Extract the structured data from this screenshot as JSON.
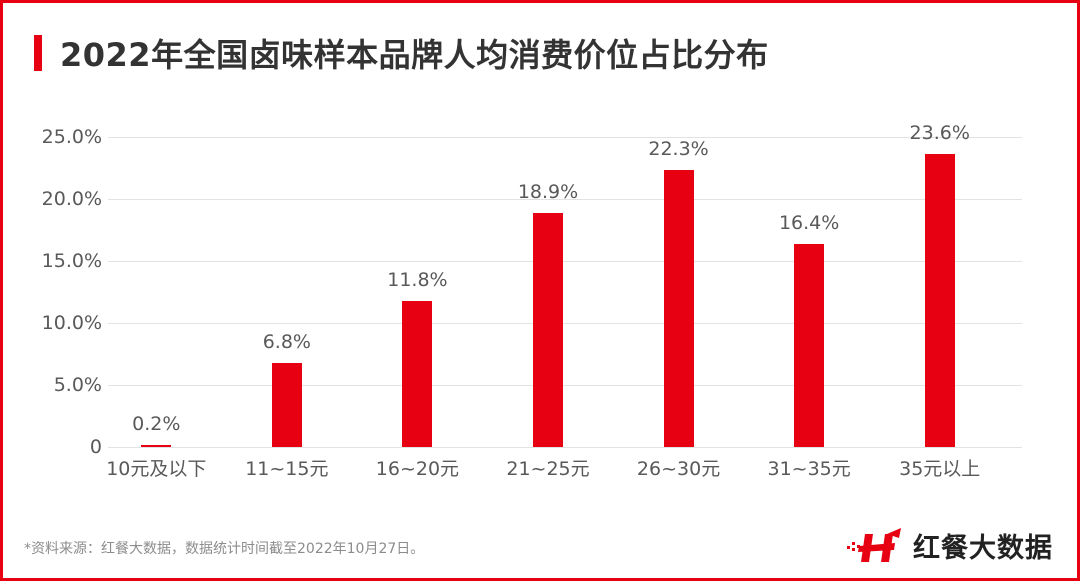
{
  "header": {
    "title": "2022年全国卤味样本品牌人均消费价位占比分布"
  },
  "footer": {
    "source_note": "*资料来源：红餐大数据，数据统计时间截至2022年10月27日。",
    "brand_logo_text": "红餐大数据"
  },
  "colors": {
    "accent": "#e60012",
    "text": "#333333",
    "axis_text": "#595959",
    "grid": "#e2e2e2"
  },
  "chart_data": {
    "type": "bar",
    "title": "2022年全国卤味样本品牌人均消费价位占比分布",
    "xlabel": "",
    "ylabel": "",
    "categories": [
      "10元及以下",
      "11~15元",
      "16~20元",
      "21~25元",
      "26~30元",
      "31~35元",
      "35元以上"
    ],
    "values": [
      0.2,
      6.8,
      11.8,
      18.9,
      22.3,
      16.4,
      23.6
    ],
    "value_labels": [
      "0.2%",
      "6.8%",
      "11.8%",
      "18.9%",
      "22.3%",
      "16.4%",
      "23.6%"
    ],
    "ylim": [
      0,
      25
    ],
    "yticks": [
      0,
      5,
      10,
      15,
      20,
      25
    ],
    "ytick_labels": [
      "0",
      "5.0%",
      "10.0%",
      "15.0%",
      "20.0%",
      "25.0%"
    ],
    "grid": true,
    "legend": null,
    "bar_color": "#e60012"
  }
}
